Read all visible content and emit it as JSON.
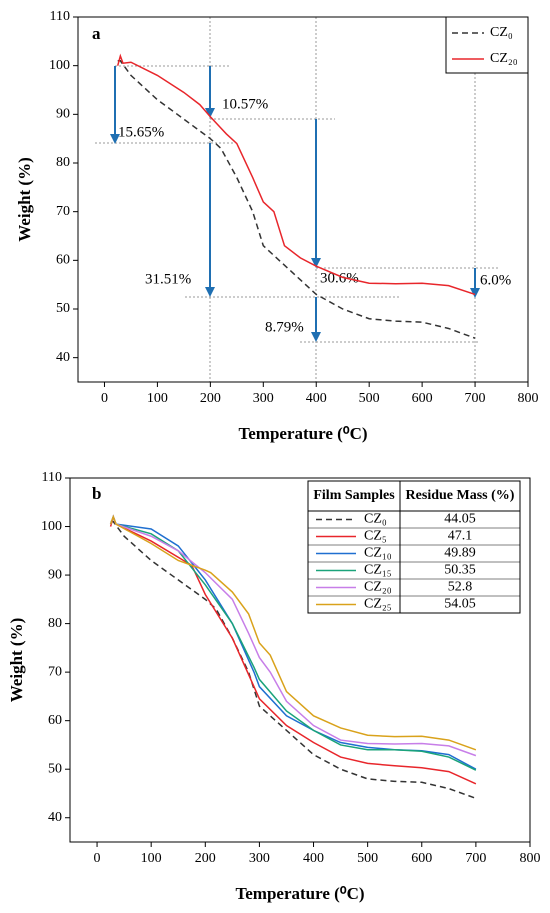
{
  "chart_data": [
    {
      "type": "line",
      "panel_label": "a",
      "x_label": "Temperature (⁰C)",
      "y_label": "Weight (%)",
      "xlim": [
        -50,
        800
      ],
      "ylim": [
        35,
        110
      ],
      "xticks": [
        0,
        100,
        200,
        300,
        400,
        500,
        600,
        700,
        800
      ],
      "yticks": [
        40,
        50,
        60,
        70,
        80,
        90,
        100,
        110
      ],
      "legend": "upper right",
      "annotations": [
        "15.65%",
        "10.57%",
        "31.51%",
        "30.6%",
        "8.79%",
        "6.0%"
      ],
      "series": [
        {
          "name": "CZ₀",
          "color": "#333333",
          "dashed": true,
          "x": [
            25,
            30,
            50,
            100,
            150,
            200,
            220,
            250,
            280,
            300,
            350,
            400,
            450,
            500,
            550,
            600,
            650,
            700
          ],
          "values": [
            101,
            101,
            98,
            93,
            89,
            85,
            83,
            77,
            70,
            63,
            58,
            53,
            50,
            48,
            47.5,
            47.3,
            46,
            44
          ]
        },
        {
          "name": "CZ₂₀",
          "color": "#e8262b",
          "x": [
            25,
            30,
            35,
            50,
            100,
            150,
            180,
            200,
            230,
            250,
            280,
            300,
            320,
            340,
            370,
            400,
            450,
            500,
            550,
            600,
            650,
            700
          ],
          "values": [
            100,
            102,
            100.5,
            100.7,
            98,
            94.5,
            92,
            89.5,
            86,
            84,
            77,
            72,
            70,
            63,
            60.5,
            58.8,
            56.5,
            55.3,
            55.2,
            55.3,
            54.8,
            53
          ]
        }
      ]
    },
    {
      "type": "line",
      "panel_label": "b",
      "x_label": "Temperature (⁰C)",
      "y_label": "Weight (%)",
      "xlim": [
        -50,
        800
      ],
      "ylim": [
        35,
        110
      ],
      "xticks": [
        0,
        100,
        200,
        300,
        400,
        500,
        600,
        700,
        800
      ],
      "yticks": [
        40,
        50,
        60,
        70,
        80,
        90,
        100,
        110
      ],
      "table_headers": [
        "Film Samples",
        "Residue Mass (%)"
      ],
      "series": [
        {
          "name": "CZ₀",
          "color": "#333333",
          "dashed": true,
          "residue_mass": 44.05,
          "x": [
            25,
            30,
            50,
            100,
            150,
            200,
            220,
            250,
            280,
            300,
            350,
            400,
            450,
            500,
            550,
            600,
            650,
            700
          ],
          "values": [
            101,
            101,
            98,
            93,
            89,
            85,
            83,
            77,
            70,
            63,
            58,
            53,
            50,
            48,
            47.5,
            47.3,
            46,
            44
          ]
        },
        {
          "name": "CZ₅",
          "color": "#e8262b",
          "residue_mass": 47.1,
          "x": [
            25,
            30,
            35,
            100,
            175,
            200,
            250,
            290,
            300,
            350,
            400,
            450,
            500,
            550,
            600,
            650,
            700
          ],
          "values": [
            100,
            102,
            100.5,
            97,
            92,
            86,
            77,
            67,
            64.5,
            59,
            55.5,
            52.5,
            51.2,
            50.7,
            50.3,
            49.5,
            47
          ]
        },
        {
          "name": "CZ₁₀",
          "color": "#1f6fd0",
          "residue_mass": 49.89,
          "x": [
            25,
            30,
            35,
            100,
            150,
            200,
            250,
            290,
            300,
            350,
            400,
            450,
            500,
            550,
            600,
            650,
            700
          ],
          "values": [
            100.5,
            102,
            100.5,
            99.5,
            96,
            89,
            80,
            70,
            67,
            61,
            58,
            55.5,
            54.5,
            54,
            53.8,
            53,
            50
          ]
        },
        {
          "name": "CZ₁₅",
          "color": "#1aa37a",
          "residue_mass": 50.35,
          "x": [
            25,
            30,
            35,
            100,
            150,
            200,
            250,
            290,
            300,
            350,
            400,
            450,
            500,
            550,
            600,
            650,
            700
          ],
          "values": [
            100.5,
            102,
            100.5,
            98.5,
            95,
            88,
            80,
            71,
            68.5,
            62,
            58,
            55,
            54,
            54,
            53.7,
            52.5,
            49.8
          ]
        },
        {
          "name": "CZ₂₀",
          "color": "#c77ee8",
          "residue_mass": 52.8,
          "x": [
            25,
            30,
            35,
            100,
            150,
            200,
            250,
            280,
            300,
            320,
            350,
            400,
            450,
            500,
            550,
            600,
            650,
            700
          ],
          "values": [
            100.5,
            102,
            100.5,
            98,
            95,
            90.5,
            85,
            78,
            73,
            70,
            64,
            59,
            56,
            55.3,
            55.2,
            55.3,
            54.8,
            52.8
          ]
        },
        {
          "name": "CZ₂₅",
          "color": "#d9a21b",
          "residue_mass": 54.05,
          "x": [
            25,
            30,
            35,
            100,
            150,
            200,
            210,
            250,
            280,
            300,
            320,
            350,
            400,
            450,
            500,
            550,
            600,
            650,
            700
          ],
          "values": [
            100.5,
            102,
            100.5,
            96.5,
            93,
            91,
            90.5,
            86.5,
            82,
            76,
            73.5,
            66,
            61,
            58.5,
            57,
            56.7,
            56.8,
            56,
            54
          ]
        }
      ]
    }
  ]
}
